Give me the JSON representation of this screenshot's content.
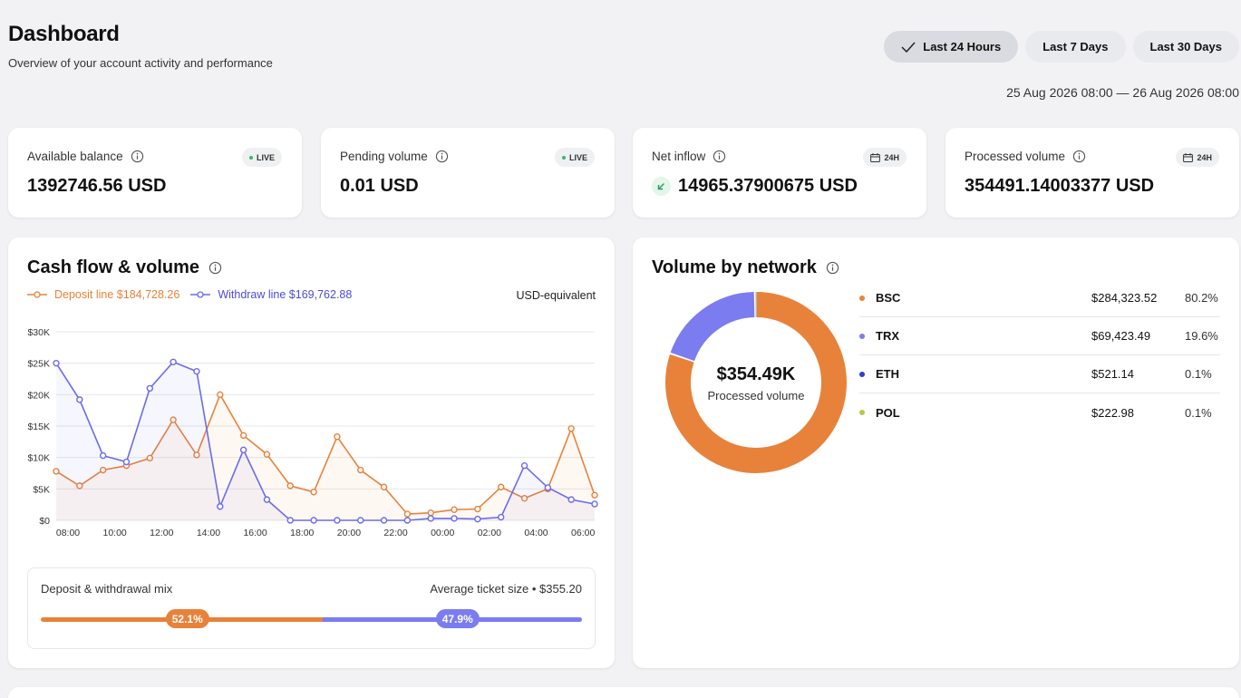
{
  "header": {
    "title": "Dashboard",
    "subtitle": "Overview of your account activity and performance",
    "ranges": [
      {
        "label": "Last 24 Hours",
        "active": true
      },
      {
        "label": "Last 7 Days",
        "active": false
      },
      {
        "label": "Last 30 Days",
        "active": false
      }
    ],
    "date_range": "25 Aug 2026 08:00 — 26 Aug 2026 08:00"
  },
  "stats": [
    {
      "label": "Available balance",
      "value": "1392746.56 USD",
      "badge": "LIVE"
    },
    {
      "label": "Pending volume",
      "value": "0.01 USD",
      "badge": "LIVE"
    },
    {
      "label": "Net inflow",
      "value": "14965.37900675 USD",
      "badge": "24H"
    },
    {
      "label": "Processed volume",
      "value": "354491.14003377 USD",
      "badge": "24H"
    }
  ],
  "cashflow": {
    "title": "Cash flow & volume",
    "deposit_label": "Deposit line $184,728.26",
    "withdraw_label": "Withdraw line $169,762.88",
    "unit": "USD-equivalent",
    "mix": {
      "label": "Deposit & withdrawal mix",
      "average": "Average ticket size • $355.20",
      "deposit_pct_label": "52.1%",
      "withdraw_pct_label": "47.9%",
      "deposit_fraction": 0.521
    }
  },
  "chart_data": {
    "type": "line",
    "title": "Cash flow & volume",
    "ylabel": "USD-equivalent",
    "ylim": [
      0,
      30000
    ],
    "y_ticks": [
      "$0",
      "$5K",
      "$10K",
      "$15K",
      "$20K",
      "$25K",
      "$30K"
    ],
    "x_tick_labels": [
      "08:00",
      "10:00",
      "12:00",
      "14:00",
      "16:00",
      "18:00",
      "20:00",
      "22:00",
      "00:00",
      "02:00",
      "04:00",
      "06:00"
    ],
    "x_count": 24,
    "series": [
      {
        "name": "Deposit line",
        "color": "#e8823a",
        "values": [
          7800,
          5500,
          8000,
          8700,
          9900,
          16000,
          10400,
          20000,
          13500,
          10500,
          5500,
          4500,
          13300,
          8000,
          5300,
          1000,
          1200,
          1700,
          1800,
          5300,
          3500,
          5000,
          14600,
          4000
        ]
      },
      {
        "name": "Withdraw line",
        "color": "#6b6bec",
        "values": [
          25000,
          19200,
          10300,
          9300,
          21000,
          25200,
          23700,
          2200,
          11200,
          3300,
          0,
          0,
          0,
          0,
          0,
          0,
          300,
          300,
          200,
          500,
          8700,
          5200,
          3300,
          2600
        ]
      }
    ]
  },
  "network": {
    "title": "Volume by network",
    "total": "$354.49K",
    "caption": "Processed volume",
    "rows": [
      {
        "name": "BSC",
        "value": "$284,323.52",
        "pct": "80.2%",
        "color": "#e8823a",
        "share": 80.2
      },
      {
        "name": "TRX",
        "value": "$69,423.49",
        "pct": "19.6%",
        "color": "#7a7cf0",
        "share": 19.6
      },
      {
        "name": "ETH",
        "value": "$521.14",
        "pct": "0.1%",
        "color": "#2f3fc4",
        "share": 0.1
      },
      {
        "name": "POL",
        "value": "$222.98",
        "pct": "0.1%",
        "color": "#b8c74a",
        "share": 0.1
      }
    ]
  }
}
